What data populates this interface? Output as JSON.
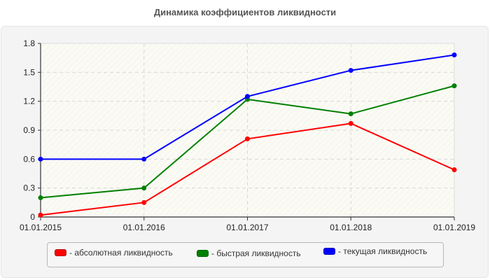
{
  "title": "Динамика коэффициентов ликвидности",
  "chart_data": {
    "type": "line",
    "title": "Динамика коэффициентов ликвидности",
    "xlabel": "",
    "ylabel": "",
    "categories": [
      "01.01.2015",
      "01.01.2016",
      "01.01.2017",
      "01.01.2018",
      "01.01.2019"
    ],
    "ylim": [
      0,
      1.8
    ],
    "yticks": [
      "0",
      "0.3",
      "0.6",
      "0.9",
      "1.2",
      "1.5",
      "1.8"
    ],
    "grid": true,
    "legend_position": "bottom",
    "series": [
      {
        "name": "абсолютная ликвидность",
        "color": "#ff0000",
        "values": [
          0.02,
          0.15,
          0.81,
          0.97,
          0.49
        ]
      },
      {
        "name": "быстрая ликвидность",
        "color": "#008000",
        "values": [
          0.2,
          0.3,
          1.22,
          1.07,
          1.36
        ]
      },
      {
        "name": "текущая ликвидность",
        "color": "#0000ff",
        "values": [
          0.6,
          0.6,
          1.25,
          1.52,
          1.68
        ]
      }
    ]
  },
  "legend": {
    "items": [
      {
        "label": "- абсолютная ликвидность",
        "color": "#ff0000"
      },
      {
        "label": "- быстрая ликвидность",
        "color": "#008000"
      },
      {
        "label": "- текущая ликвидность",
        "color": "#0000ff"
      }
    ]
  }
}
